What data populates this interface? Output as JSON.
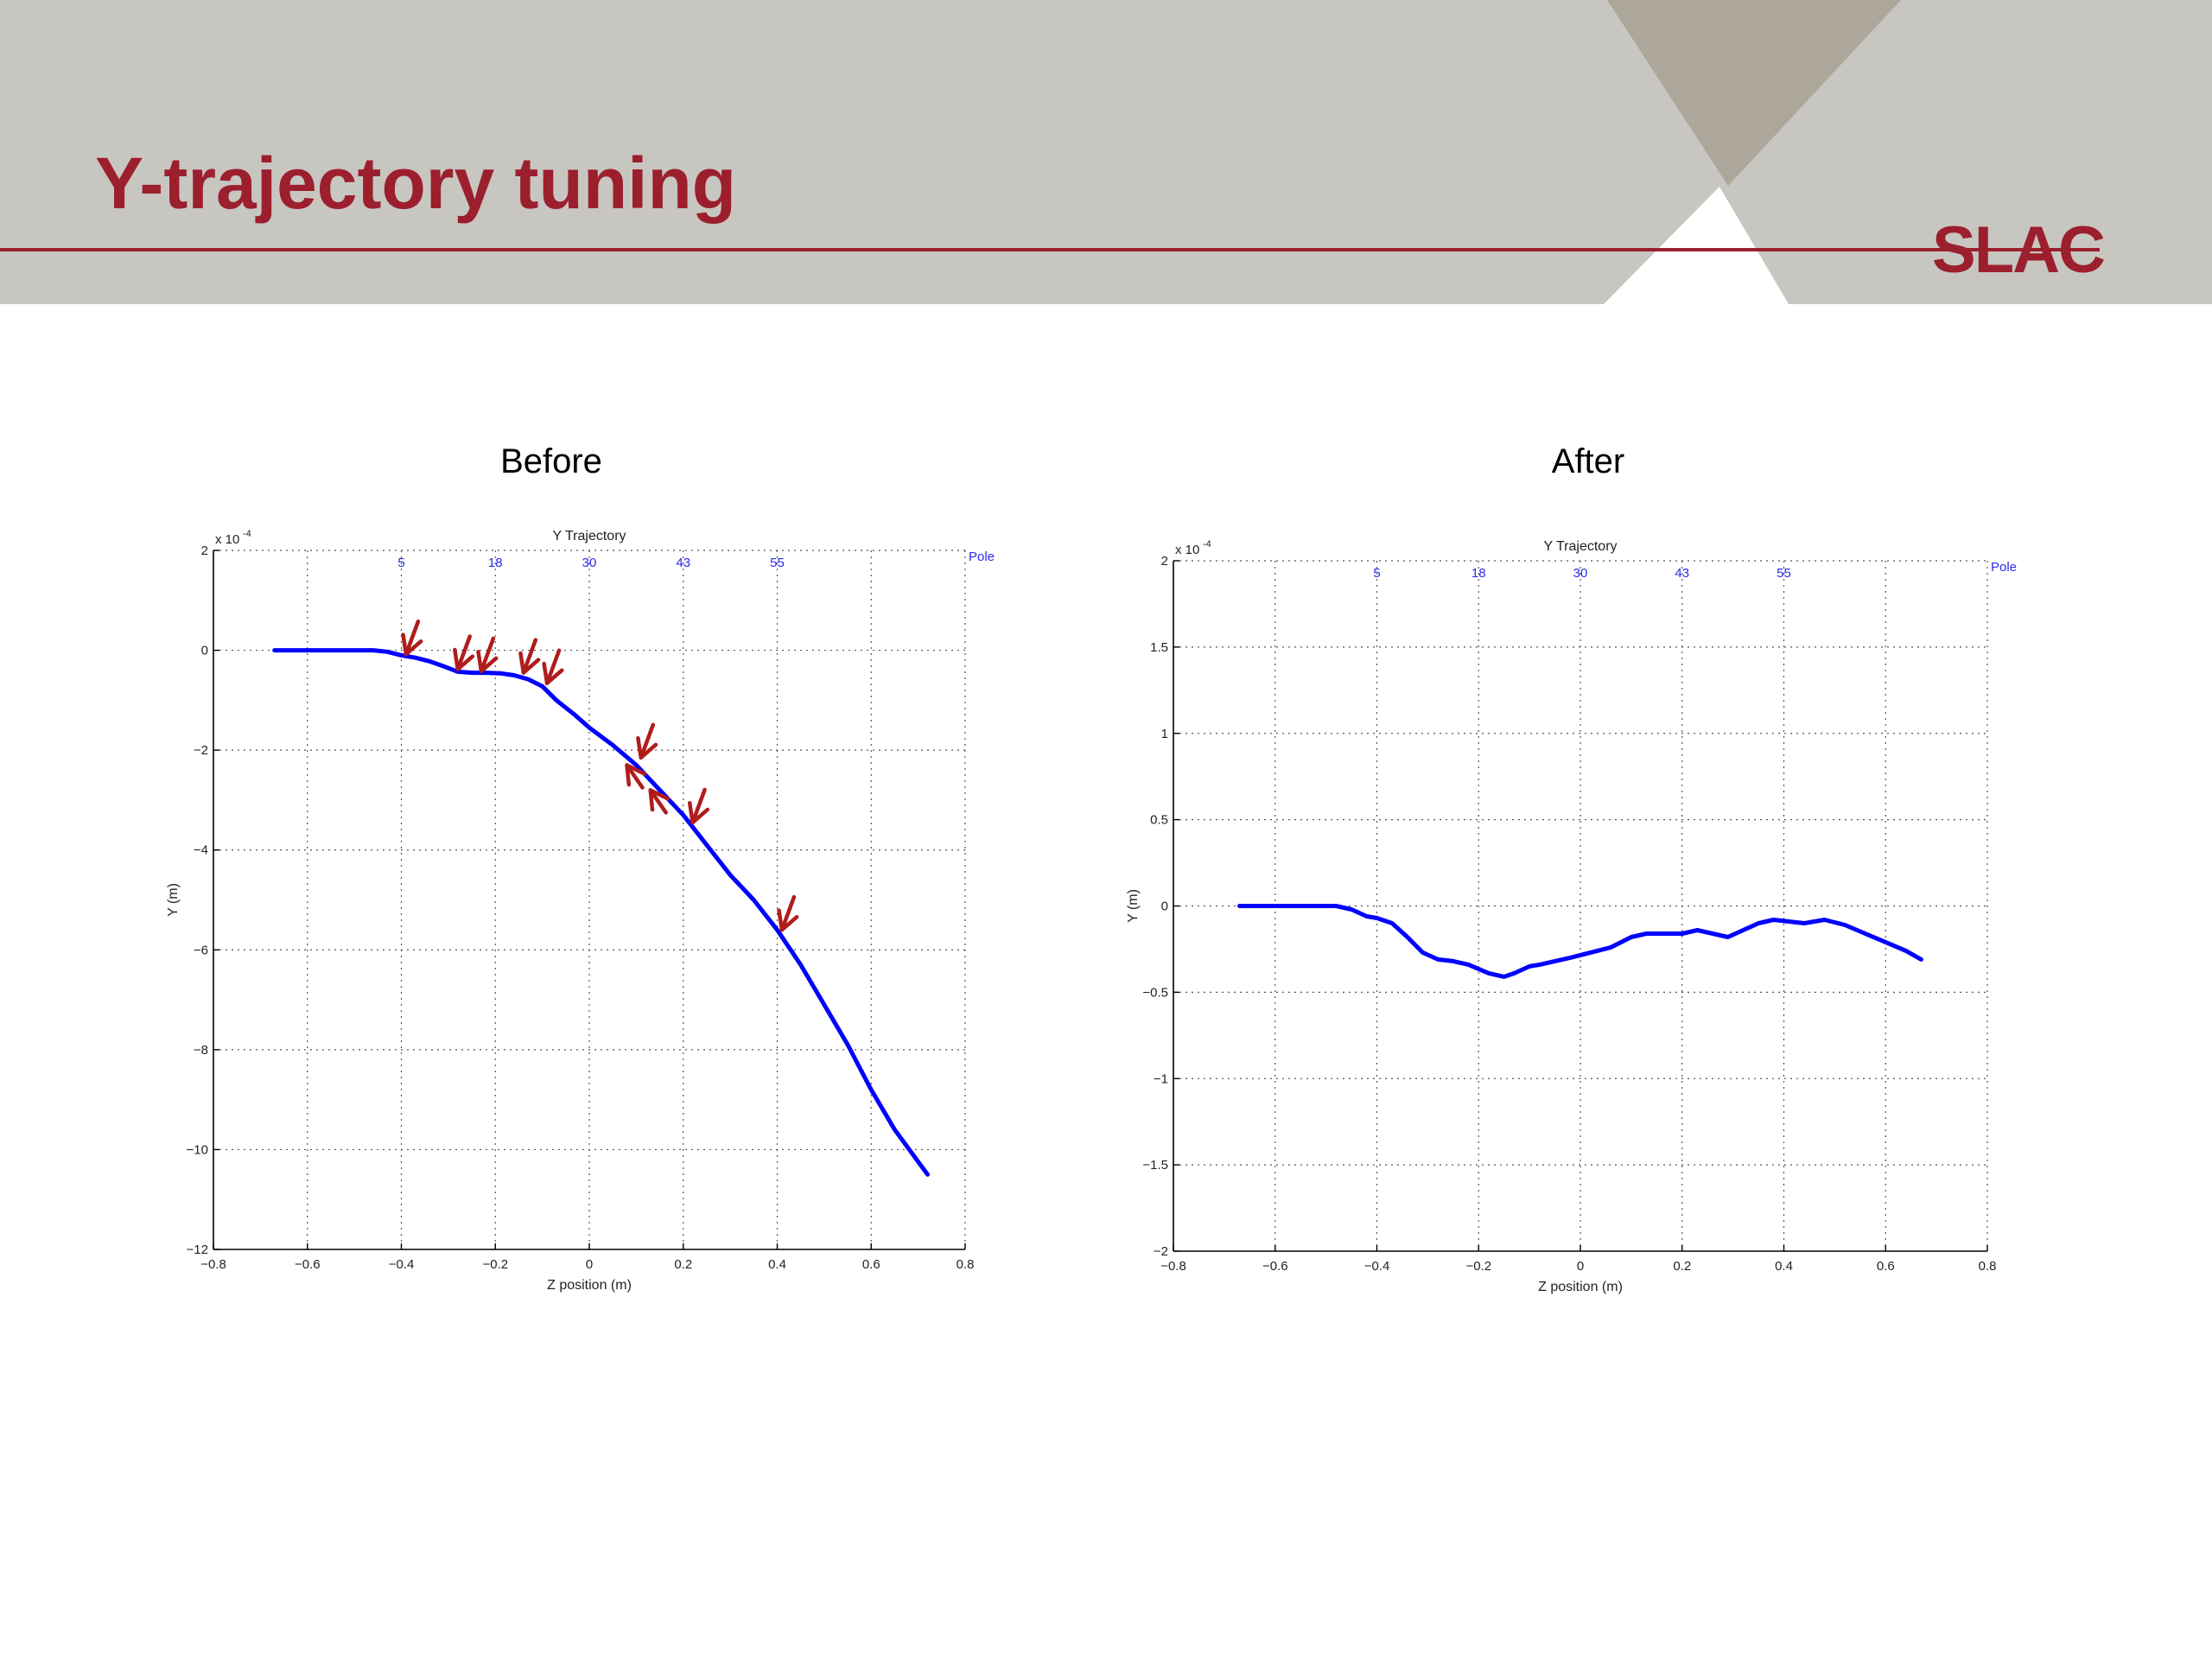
{
  "slide": {
    "title": "Y-trajectory tuning",
    "logo": "SLAC",
    "colors": {
      "accent": "#9c1f2e",
      "header_bg": "#c8c6c1",
      "line": "#0000ff",
      "arrow": "#b01c1c"
    }
  },
  "panels": {
    "before_label": "Before",
    "after_label": "After"
  },
  "chart_data": [
    {
      "type": "line",
      "title": "Y Trajectory",
      "xlabel": "Z position (m)",
      "ylabel": "Y (m)",
      "y_multiplier": "x 10",
      "y_exponent": "-4",
      "xlim": [
        -0.8,
        0.8
      ],
      "ylim": [
        -12,
        2
      ],
      "xticks": [
        -0.8,
        -0.6,
        -0.4,
        -0.2,
        0,
        0.2,
        0.4,
        0.6,
        0.8
      ],
      "xtick_labels": [
        "−0.8",
        "−0.6",
        "−0.4",
        "−0.2",
        "0",
        "0.2",
        "0.4",
        "0.6",
        "0.8"
      ],
      "yticks": [
        2,
        0,
        -2,
        -4,
        -6,
        -8,
        -10,
        -12
      ],
      "ytick_labels": [
        "2",
        "0",
        "−2",
        "−4",
        "−6",
        "−8",
        "−10",
        "−12"
      ],
      "grid": true,
      "pole_label": "Pole",
      "pole_ticks": [
        {
          "x": -0.4,
          "label": "5"
        },
        {
          "x": -0.2,
          "label": "18"
        },
        {
          "x": 0.0,
          "label": "30"
        },
        {
          "x": 0.2,
          "label": "43"
        },
        {
          "x": 0.4,
          "label": "55"
        }
      ],
      "series": [
        {
          "x": [
            -0.67,
            -0.6,
            -0.5,
            -0.46,
            -0.43,
            -0.4,
            -0.37,
            -0.34,
            -0.31,
            -0.28,
            -0.25,
            -0.22,
            -0.19,
            -0.16,
            -0.13,
            -0.1,
            -0.07,
            -0.03,
            0.0,
            0.05,
            0.1,
            0.15,
            0.2,
            0.25,
            0.3,
            0.35,
            0.4,
            0.45,
            0.5,
            0.55,
            0.6,
            0.65,
            0.72
          ],
          "y": [
            0.0,
            0.0,
            0.0,
            0.0,
            -0.03,
            -0.1,
            -0.15,
            -0.22,
            -0.32,
            -0.43,
            -0.45,
            -0.45,
            -0.46,
            -0.5,
            -0.58,
            -0.72,
            -1.0,
            -1.3,
            -1.55,
            -1.9,
            -2.3,
            -2.8,
            -3.3,
            -3.9,
            -4.5,
            -5.0,
            -5.6,
            -6.3,
            -7.1,
            -7.9,
            -8.8,
            -9.6,
            -10.5
          ]
        }
      ],
      "arrows": [
        {
          "x": -0.39,
          "y": -0.08,
          "dir": "down"
        },
        {
          "x": -0.28,
          "y": -0.38,
          "dir": "down"
        },
        {
          "x": -0.23,
          "y": -0.42,
          "dir": "down"
        },
        {
          "x": -0.14,
          "y": -0.45,
          "dir": "down"
        },
        {
          "x": -0.09,
          "y": -0.66,
          "dir": "down"
        },
        {
          "x": 0.11,
          "y": -2.15,
          "dir": "down"
        },
        {
          "x": 0.08,
          "y": -2.3,
          "dir": "up"
        },
        {
          "x": 0.13,
          "y": -2.8,
          "dir": "up"
        },
        {
          "x": 0.22,
          "y": -3.45,
          "dir": "down"
        },
        {
          "x": 0.41,
          "y": -5.6,
          "dir": "down"
        }
      ]
    },
    {
      "type": "line",
      "title": "Y Trajectory",
      "xlabel": "Z position (m)",
      "ylabel": "Y (m)",
      "y_multiplier": "x 10",
      "y_exponent": "-4",
      "xlim": [
        -0.8,
        0.8
      ],
      "ylim": [
        -2,
        2
      ],
      "xticks": [
        -0.8,
        -0.6,
        -0.4,
        -0.2,
        0,
        0.2,
        0.4,
        0.6,
        0.8
      ],
      "xtick_labels": [
        "−0.8",
        "−0.6",
        "−0.4",
        "−0.2",
        "0",
        "0.2",
        "0.4",
        "0.6",
        "0.8"
      ],
      "yticks": [
        2,
        1.5,
        1,
        0.5,
        0,
        -0.5,
        -1,
        -1.5,
        -2
      ],
      "ytick_labels": [
        "2",
        "1.5",
        "1",
        "0.5",
        "0",
        "−0.5",
        "−1",
        "−1.5",
        "−2"
      ],
      "grid": true,
      "pole_label": "Pole",
      "pole_ticks": [
        {
          "x": -0.4,
          "label": "5"
        },
        {
          "x": -0.2,
          "label": "18"
        },
        {
          "x": 0.0,
          "label": "30"
        },
        {
          "x": 0.2,
          "label": "43"
        },
        {
          "x": 0.4,
          "label": "55"
        }
      ],
      "series": [
        {
          "x": [
            -0.67,
            -0.6,
            -0.52,
            -0.48,
            -0.45,
            -0.42,
            -0.4,
            -0.37,
            -0.34,
            -0.31,
            -0.28,
            -0.25,
            -0.22,
            -0.18,
            -0.15,
            -0.13,
            -0.1,
            -0.08,
            -0.05,
            -0.02,
            0.02,
            0.06,
            0.1,
            0.13,
            0.17,
            0.2,
            0.23,
            0.26,
            0.29,
            0.32,
            0.35,
            0.38,
            0.41,
            0.44,
            0.48,
            0.52,
            0.56,
            0.6,
            0.64,
            0.67
          ],
          "y": [
            0.0,
            0.0,
            0.0,
            0.0,
            -0.02,
            -0.06,
            -0.07,
            -0.1,
            -0.18,
            -0.27,
            -0.31,
            -0.32,
            -0.34,
            -0.39,
            -0.41,
            -0.39,
            -0.35,
            -0.34,
            -0.32,
            -0.3,
            -0.27,
            -0.24,
            -0.18,
            -0.16,
            -0.16,
            -0.16,
            -0.14,
            -0.16,
            -0.18,
            -0.14,
            -0.1,
            -0.08,
            -0.09,
            -0.1,
            -0.08,
            -0.11,
            -0.16,
            -0.21,
            -0.26,
            -0.31
          ]
        }
      ]
    }
  ]
}
